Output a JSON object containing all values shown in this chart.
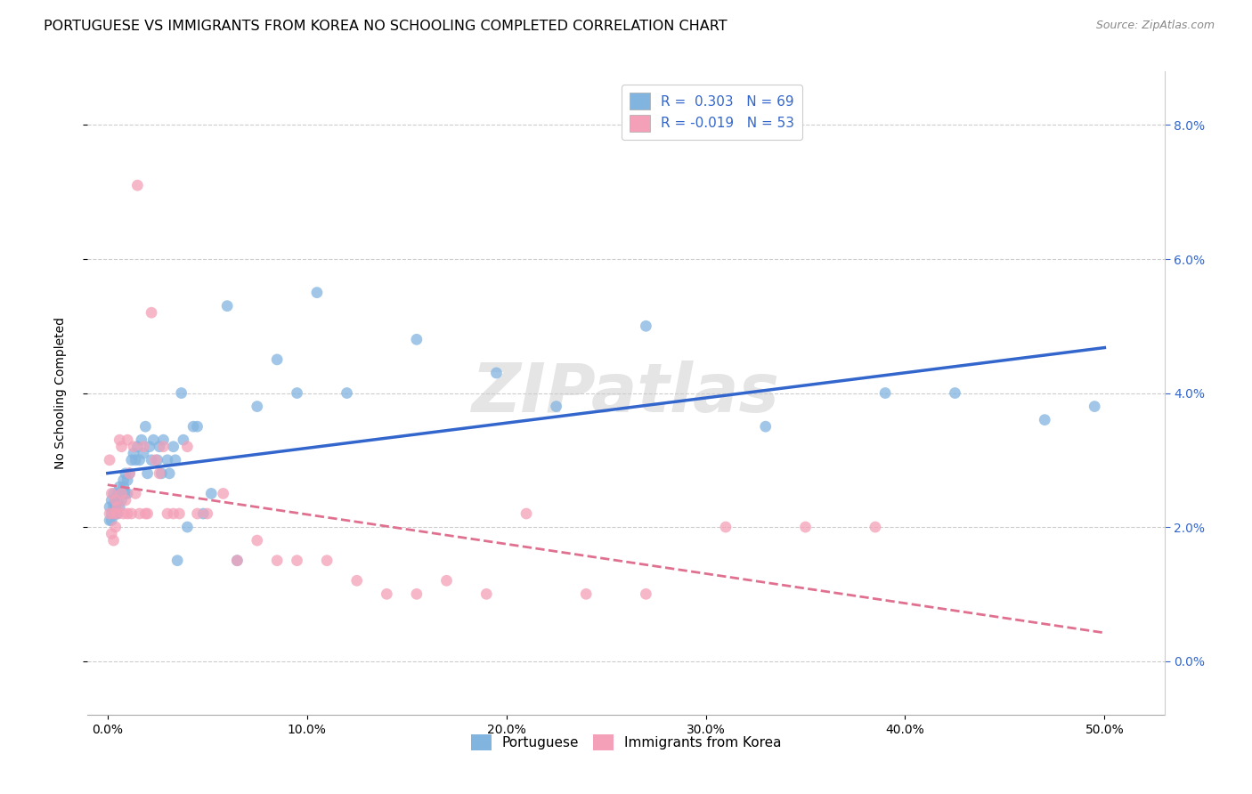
{
  "title": "PORTUGUESE VS IMMIGRANTS FROM KOREA NO SCHOOLING COMPLETED CORRELATION CHART",
  "source": "Source: ZipAtlas.com",
  "ylabel": "No Schooling Completed",
  "xlabel_ticks": [
    "0.0%",
    "10.0%",
    "20.0%",
    "30.0%",
    "40.0%",
    "50.0%"
  ],
  "xlabel_vals": [
    0.0,
    0.1,
    0.2,
    0.3,
    0.4,
    0.5
  ],
  "ylabel_ticks": [
    "0.0%",
    "2.0%",
    "4.0%",
    "6.0%",
    "8.0%"
  ],
  "ylabel_vals": [
    0.0,
    0.02,
    0.04,
    0.06,
    0.08
  ],
  "xlim": [
    -0.01,
    0.53
  ],
  "ylim": [
    -0.008,
    0.088
  ],
  "legend1_label": "R =  0.303   N = 69",
  "legend2_label": "R = -0.019   N = 53",
  "blue_color": "#82b4e0",
  "pink_color": "#f4a0b8",
  "blue_line_color": "#3366cc",
  "pink_line_color": "#e07090",
  "watermark": "ZIPatlas",
  "background_color": "#ffffff",
  "grid_color": "#cccccc",
  "title_fontsize": 11.5,
  "axis_label_fontsize": 10,
  "tick_fontsize": 10,
  "portuguese_x": [
    0.001,
    0.001,
    0.002,
    0.002,
    0.002,
    0.003,
    0.003,
    0.003,
    0.004,
    0.004,
    0.004,
    0.005,
    0.005,
    0.005,
    0.006,
    0.006,
    0.007,
    0.007,
    0.008,
    0.008,
    0.009,
    0.009,
    0.01,
    0.01,
    0.011,
    0.012,
    0.013,
    0.014,
    0.015,
    0.016,
    0.017,
    0.018,
    0.019,
    0.02,
    0.021,
    0.022,
    0.023,
    0.025,
    0.026,
    0.027,
    0.028,
    0.03,
    0.031,
    0.033,
    0.034,
    0.035,
    0.037,
    0.038,
    0.04,
    0.043,
    0.045,
    0.048,
    0.052,
    0.06,
    0.065,
    0.075,
    0.085,
    0.095,
    0.105,
    0.12,
    0.155,
    0.195,
    0.225,
    0.27,
    0.33,
    0.39,
    0.425,
    0.47,
    0.495
  ],
  "portuguese_y": [
    0.021,
    0.023,
    0.022,
    0.024,
    0.021,
    0.023,
    0.022,
    0.025,
    0.022,
    0.024,
    0.023,
    0.022,
    0.025,
    0.024,
    0.023,
    0.026,
    0.025,
    0.024,
    0.027,
    0.026,
    0.025,
    0.028,
    0.027,
    0.025,
    0.028,
    0.03,
    0.031,
    0.03,
    0.032,
    0.03,
    0.033,
    0.031,
    0.035,
    0.028,
    0.032,
    0.03,
    0.033,
    0.03,
    0.032,
    0.028,
    0.033,
    0.03,
    0.028,
    0.032,
    0.03,
    0.015,
    0.04,
    0.033,
    0.02,
    0.035,
    0.035,
    0.022,
    0.025,
    0.053,
    0.015,
    0.038,
    0.045,
    0.04,
    0.055,
    0.04,
    0.048,
    0.043,
    0.038,
    0.05,
    0.035,
    0.04,
    0.04,
    0.036,
    0.038
  ],
  "korea_x": [
    0.001,
    0.001,
    0.002,
    0.002,
    0.003,
    0.003,
    0.004,
    0.004,
    0.005,
    0.005,
    0.006,
    0.007,
    0.007,
    0.008,
    0.009,
    0.01,
    0.01,
    0.011,
    0.012,
    0.013,
    0.014,
    0.015,
    0.016,
    0.018,
    0.019,
    0.02,
    0.022,
    0.024,
    0.026,
    0.028,
    0.03,
    0.033,
    0.036,
    0.04,
    0.045,
    0.05,
    0.058,
    0.065,
    0.075,
    0.085,
    0.095,
    0.11,
    0.125,
    0.14,
    0.155,
    0.17,
    0.19,
    0.21,
    0.24,
    0.27,
    0.31,
    0.35,
    0.385
  ],
  "korea_y": [
    0.022,
    0.03,
    0.019,
    0.025,
    0.018,
    0.022,
    0.02,
    0.024,
    0.022,
    0.023,
    0.033,
    0.025,
    0.032,
    0.022,
    0.024,
    0.022,
    0.033,
    0.028,
    0.022,
    0.032,
    0.025,
    0.071,
    0.022,
    0.032,
    0.022,
    0.022,
    0.052,
    0.03,
    0.028,
    0.032,
    0.022,
    0.022,
    0.022,
    0.032,
    0.022,
    0.022,
    0.025,
    0.015,
    0.018,
    0.015,
    0.015,
    0.015,
    0.012,
    0.01,
    0.01,
    0.012,
    0.01,
    0.022,
    0.01,
    0.01,
    0.02,
    0.02,
    0.02
  ]
}
